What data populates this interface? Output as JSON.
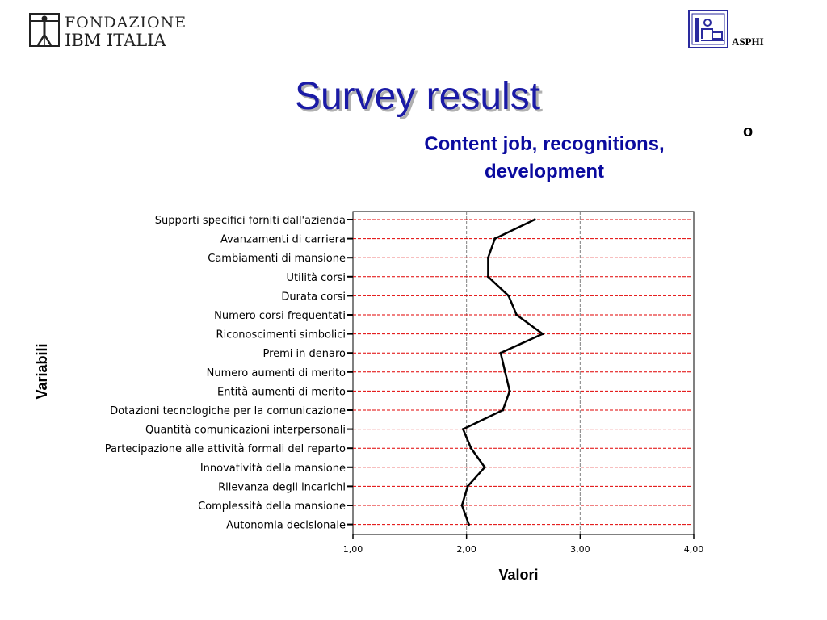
{
  "header": {
    "logo_left_line1": "FONDAZIONE",
    "logo_left_line2": "IBM ITALIA",
    "logo_right_label": "ASPHI"
  },
  "title": "Survey resulst",
  "stray_char": "o",
  "subtitle_line1": "Content job, recognitions,",
  "subtitle_line2": "development",
  "chart_data": {
    "type": "line",
    "orientation": "horizontal-profile",
    "xlabel": "Valori",
    "ylabel": "Variabili",
    "xlim": [
      1,
      4
    ],
    "xticks": [
      "1,00",
      "2,00",
      "3,00",
      "4,00"
    ],
    "grid": "vertical dashed gray at 2,00 and 3,00; horizontal dashed red at every category",
    "categories": [
      "Supporti specifici forniti dall'azienda",
      "Avanzamenti di carriera",
      "Cambiamenti di mansione",
      "Utilità corsi",
      "Durata corsi",
      "Numero corsi frequentati",
      "Riconoscimenti simbolici",
      "Premi in denaro",
      "Numero aumenti di merito",
      "Entità aumenti di  merito",
      "Dotazioni tecnologiche per la comunicazione",
      "Quantità comunicazioni interpersonali",
      "Partecipazione alle attività formali del reparto",
      "Innovatività della mansione",
      "Rilevanza degli incarichi",
      "Complessità della mansione",
      "Autonomia decisionale"
    ],
    "values": [
      2.6,
      2.25,
      2.19,
      2.19,
      2.37,
      2.44,
      2.67,
      2.3,
      2.34,
      2.38,
      2.32,
      1.97,
      2.04,
      2.16,
      2.01,
      1.96,
      2.02
    ],
    "colors": {
      "line": "#000000",
      "hgrid": "#e00000",
      "vgrid": "#808080",
      "axis": "#000000"
    }
  }
}
